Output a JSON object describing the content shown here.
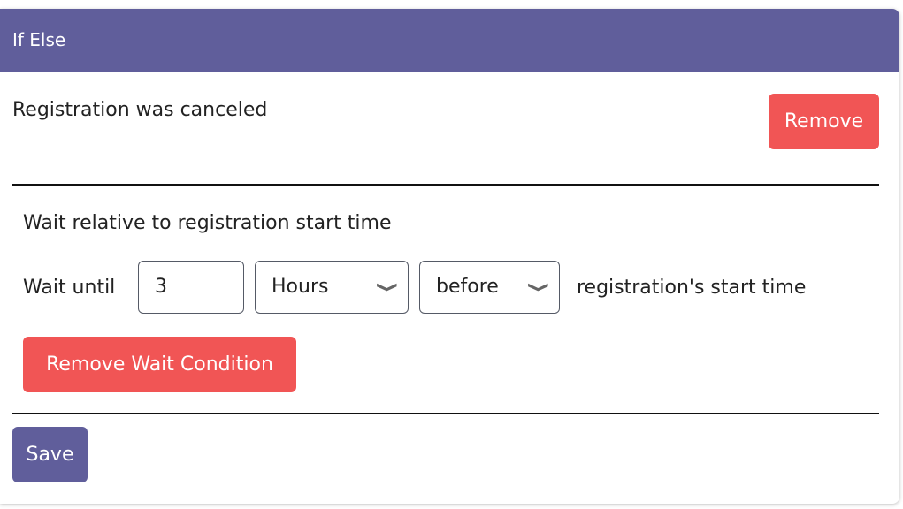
{
  "header": {
    "title": "If Else"
  },
  "condition": {
    "label": "Registration was canceled",
    "remove_label": "Remove"
  },
  "wait": {
    "title": "Wait relative to registration start time",
    "prefix": "Wait until",
    "amount": "3",
    "unit": "Hours",
    "direction": "before",
    "suffix": "registration's start time",
    "remove_label": "Remove Wait Condition"
  },
  "footer": {
    "save_label": "Save"
  }
}
